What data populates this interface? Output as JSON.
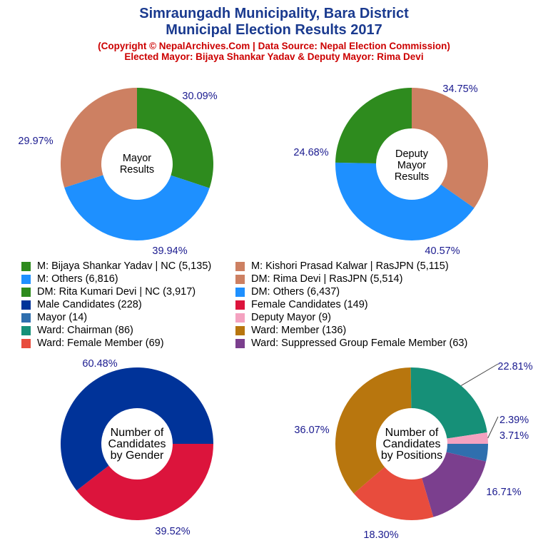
{
  "header": {
    "title_line1": "Simraungadh Municipality, Bara District",
    "title_line2": "Municipal Election Results 2017",
    "subtitle_line1": "(Copyright © NepalArchives.Com | Data Source: Nepal Election Commission)",
    "subtitle_line2": "Elected Mayor: Bijaya Shankar Yadav & Deputy Mayor: Rima Devi"
  },
  "legend": [
    {
      "label": "M: Bijaya Shankar Yadav | NC (5,135)",
      "color": "#2e8b1e"
    },
    {
      "label": "M: Kishori Prasad Kalwar | RasJPN (5,115)",
      "color": "#cd8062"
    },
    {
      "label": "M: Others (6,816)",
      "color": "#1e90ff"
    },
    {
      "label": "DM: Rima Devi | RasJPN (5,514)",
      "color": "#cd8062"
    },
    {
      "label": "DM: Rita Kumari Devi | NC (3,917)",
      "color": "#2e8b1e"
    },
    {
      "label": "DM: Others (6,437)",
      "color": "#1e90ff"
    },
    {
      "label": "Male Candidates (228)",
      "color": "#003399"
    },
    {
      "label": "Female Candidates (149)",
      "color": "#dc143c"
    },
    {
      "label": "Mayor (14)",
      "color": "#2f6fae"
    },
    {
      "label": "Deputy Mayor (9)",
      "color": "#f4a2c0"
    },
    {
      "label": "Ward: Chairman (86)",
      "color": "#169078"
    },
    {
      "label": "Ward: Member (136)",
      "color": "#b8760e"
    },
    {
      "label": "Ward: Female Member (69)",
      "color": "#e84c3d"
    },
    {
      "label": "Ward: Suppressed Group Female Member (63)",
      "color": "#7b3f8e"
    }
  ],
  "chart_data": [
    {
      "type": "pie",
      "center_label": [
        "Mayor",
        "Results"
      ],
      "slices": [
        {
          "label": "M: Bijaya Shankar Yadav | NC",
          "value": 5135,
          "percent": "30.09%",
          "color": "#2e8b1e"
        },
        {
          "label": "M: Others",
          "value": 6816,
          "percent": "39.94%",
          "color": "#1e90ff"
        },
        {
          "label": "M: Kishori Prasad Kalwar | RasJPN",
          "value": 5115,
          "percent": "29.97%",
          "color": "#cd8062"
        }
      ]
    },
    {
      "type": "pie",
      "center_label": [
        "Deputy",
        "Mayor",
        "Results"
      ],
      "slices": [
        {
          "label": "DM: Rima Devi | RasJPN",
          "value": 5514,
          "percent": "34.75%",
          "color": "#cd8062"
        },
        {
          "label": "DM: Others",
          "value": 6437,
          "percent": "40.57%",
          "color": "#1e90ff"
        },
        {
          "label": "DM: Rita Kumari Devi | NC",
          "value": 3917,
          "percent": "24.68%",
          "color": "#2e8b1e"
        }
      ]
    },
    {
      "type": "pie",
      "center_label": [
        "Number of",
        "Candidates",
        "by Gender"
      ],
      "slices": [
        {
          "label": "Female Candidates",
          "value": 149,
          "percent": "39.52%",
          "color": "#dc143c"
        },
        {
          "label": "Male Candidates",
          "value": 228,
          "percent": "60.48%",
          "color": "#003399"
        }
      ]
    },
    {
      "type": "pie",
      "center_label": [
        "Number of",
        "Candidates",
        "by Positions"
      ],
      "slices": [
        {
          "label": "Mayor",
          "value": 14,
          "percent": "3.71%",
          "color": "#2f6fae"
        },
        {
          "label": "Ward: Suppressed Group Female Member",
          "value": 63,
          "percent": "16.71%",
          "color": "#7b3f8e"
        },
        {
          "label": "Ward: Female Member",
          "value": 69,
          "percent": "18.30%",
          "color": "#e84c3d"
        },
        {
          "label": "Ward: Member",
          "value": 136,
          "percent": "36.07%",
          "color": "#b8760e"
        },
        {
          "label": "Ward: Chairman",
          "value": 86,
          "percent": "22.81%",
          "color": "#169078"
        },
        {
          "label": "Deputy Mayor",
          "value": 9,
          "percent": "2.39%",
          "color": "#f4a2c0"
        }
      ]
    }
  ]
}
